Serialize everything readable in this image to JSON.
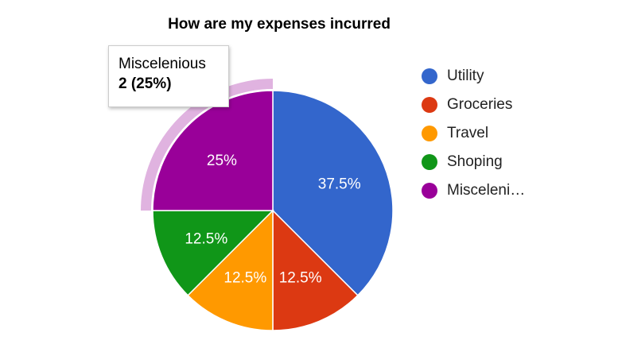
{
  "chart_data": {
    "type": "pie",
    "title": "How are my expenses incurred",
    "slices": [
      {
        "label": "Utility",
        "value": 3,
        "percent_label": "37.5%",
        "color": "#3366cc"
      },
      {
        "label": "Groceries",
        "value": 1,
        "percent_label": "12.5%",
        "color": "#dc3912"
      },
      {
        "label": "Travel",
        "value": 1,
        "percent_label": "12.5%",
        "color": "#ff9900"
      },
      {
        "label": "Shoping",
        "value": 1,
        "percent_label": "12.5%",
        "color": "#109618"
      },
      {
        "label": "Miscelenious",
        "value": 2,
        "percent_label": "25%",
        "color": "#990099"
      }
    ],
    "legend": {
      "position": "right",
      "items": [
        "Utility",
        "Groceries",
        "Travel",
        "Shoping",
        "Misceleni…"
      ]
    },
    "highlighted_slice": "Miscelenious",
    "highlight_color": "#e0b3e0",
    "tooltip": {
      "name": "Miscelenious",
      "value": "2 (25%)"
    }
  }
}
